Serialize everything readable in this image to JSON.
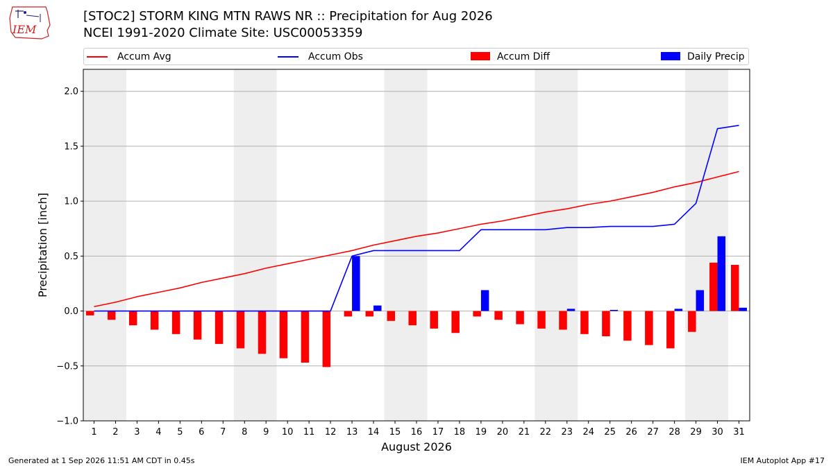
{
  "header": {
    "title_line1": "[STOC2] STORM KING MTN RAWS NR :: Precipitation for Aug 2026",
    "title_line2": "NCEI 1991-2020 Climate Site: USC00053359"
  },
  "logo": {
    "text": "IEM"
  },
  "legend": {
    "items": [
      {
        "label": "Accum Avg",
        "color": "#ff0000",
        "kind": "line"
      },
      {
        "label": "Accum Obs",
        "color": "#0000ff",
        "kind": "line"
      },
      {
        "label": "Accum Diff",
        "color": "#ff0000",
        "kind": "box"
      },
      {
        "label": "Daily Precip",
        "color": "#0000ff",
        "kind": "box"
      }
    ]
  },
  "footer": {
    "left": "Generated at 1 Sep 2026 11:51 AM CDT in 0.45s",
    "right": "IEM Autoplot App #17"
  },
  "chart_data": {
    "type": "bar",
    "xlabel": "August 2026",
    "ylabel": "Precipitation [inch]",
    "ylim": [
      -1.0,
      2.2
    ],
    "yticks": [
      -1.0,
      -0.5,
      0.0,
      0.5,
      1.0,
      1.5,
      2.0
    ],
    "ytick_labels": [
      "−1.0",
      "−0.5",
      "0.0",
      "0.5",
      "1.0",
      "1.5",
      "2.0"
    ],
    "grid": true,
    "legend_position": "top",
    "x": [
      "1",
      "2",
      "3",
      "4",
      "5",
      "6",
      "7",
      "8",
      "9",
      "10",
      "11",
      "12",
      "13",
      "14",
      "15",
      "16",
      "17",
      "18",
      "19",
      "20",
      "21",
      "22",
      "23",
      "24",
      "25",
      "26",
      "27",
      "28",
      "29",
      "30",
      "31"
    ],
    "weekend_shading": [
      [
        1,
        2
      ],
      [
        8,
        9
      ],
      [
        15,
        16
      ],
      [
        22,
        23
      ],
      [
        29,
        30
      ]
    ],
    "series": [
      {
        "name": "Accum Avg",
        "kind": "line",
        "color": "#ff0000",
        "values": [
          0.04,
          0.08,
          0.13,
          0.17,
          0.21,
          0.26,
          0.3,
          0.34,
          0.39,
          0.43,
          0.47,
          0.51,
          0.55,
          0.6,
          0.64,
          0.68,
          0.71,
          0.75,
          0.79,
          0.82,
          0.86,
          0.9,
          0.93,
          0.97,
          1.0,
          1.04,
          1.08,
          1.13,
          1.17,
          1.22,
          1.27
        ]
      },
      {
        "name": "Accum Obs",
        "kind": "line",
        "color": "#0000ff",
        "values": [
          0,
          0,
          0,
          0,
          0,
          0,
          0,
          0,
          0,
          0,
          0,
          0,
          0.5,
          0.55,
          0.55,
          0.55,
          0.55,
          0.55,
          0.74,
          0.74,
          0.74,
          0.74,
          0.76,
          0.76,
          0.77,
          0.77,
          0.77,
          0.79,
          0.98,
          1.66,
          1.69
        ]
      },
      {
        "name": "Accum Diff",
        "kind": "bar",
        "color": "#ff0000",
        "values": [
          -0.04,
          -0.08,
          -0.13,
          -0.17,
          -0.21,
          -0.26,
          -0.3,
          -0.34,
          -0.39,
          -0.43,
          -0.47,
          -0.51,
          -0.05,
          -0.05,
          -0.09,
          -0.13,
          -0.16,
          -0.2,
          -0.05,
          -0.08,
          -0.12,
          -0.16,
          -0.17,
          -0.21,
          -0.23,
          -0.27,
          -0.31,
          -0.34,
          -0.19,
          0.44,
          0.42
        ]
      },
      {
        "name": "Daily Precip",
        "kind": "bar",
        "color": "#0000ff",
        "values": [
          0,
          0,
          0,
          0,
          0,
          0,
          0,
          0,
          0,
          0,
          0,
          0,
          0.5,
          0.05,
          0,
          0,
          0,
          0,
          0.19,
          0,
          0,
          0,
          0.02,
          0,
          0.01,
          0,
          0,
          0.02,
          0.19,
          0.68,
          0.03
        ]
      }
    ]
  }
}
